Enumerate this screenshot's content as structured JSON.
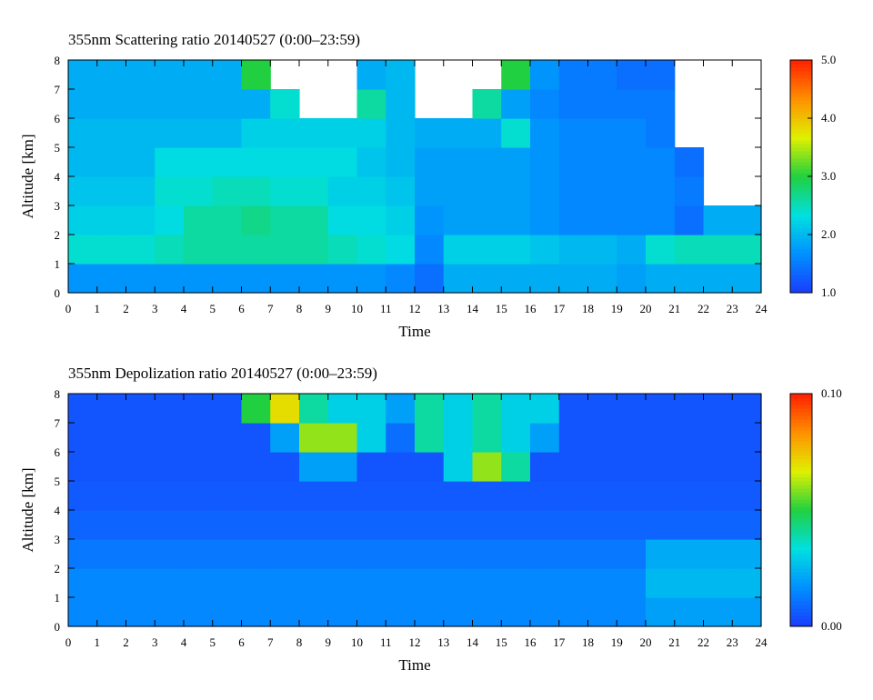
{
  "chart_data": [
    {
      "type": "heatmap",
      "title": "355nm Scattering ratio  20140527 (0:00–23:59)",
      "x_label": "Time",
      "y_label": "Altitude [km]",
      "xlim": [
        0,
        24
      ],
      "ylim": [
        0,
        8
      ],
      "xticks": [
        0,
        1,
        2,
        3,
        4,
        5,
        6,
        7,
        8,
        9,
        10,
        11,
        12,
        13,
        14,
        15,
        16,
        17,
        18,
        19,
        20,
        21,
        22,
        23,
        24
      ],
      "yticks": [
        0,
        1,
        2,
        3,
        4,
        5,
        6,
        7,
        8
      ],
      "xbins": [
        0,
        1,
        2,
        3,
        4,
        5,
        6,
        7,
        8,
        9,
        10,
        11,
        12,
        13,
        14,
        15,
        16,
        17,
        18,
        19,
        20,
        21,
        22,
        23,
        24
      ],
      "ybins": [
        0,
        1,
        2,
        3,
        4,
        5,
        6,
        7,
        8
      ],
      "zlim": [
        1,
        5
      ],
      "zticks": [
        {
          "value": 1,
          "label": "1.0"
        },
        {
          "value": 2,
          "label": "2.0"
        },
        {
          "value": 3,
          "label": "3.0"
        },
        {
          "value": 4,
          "label": "4.0"
        },
        {
          "value": 5,
          "label": "5.0"
        }
      ],
      "colormap": [
        "#1a3cff",
        "#0090ff",
        "#00e0e0",
        "#20d040",
        "#e0f000",
        "#ff9000",
        "#ff2000"
      ],
      "values": [
        [
          1.7,
          1.7,
          1.7,
          1.7,
          1.7,
          1.7,
          1.7,
          1.7,
          1.7,
          1.7,
          1.7,
          1.6,
          1.4,
          1.9,
          1.9,
          1.9,
          1.9,
          1.9,
          1.9,
          1.8,
          1.9,
          1.9,
          1.9,
          1.9
        ],
        [
          2.4,
          2.4,
          2.4,
          2.5,
          2.6,
          2.6,
          2.6,
          2.6,
          2.6,
          2.5,
          2.4,
          2.3,
          1.6,
          2.2,
          2.2,
          2.2,
          2.1,
          2.0,
          2.0,
          1.9,
          2.4,
          2.5,
          2.5,
          2.5
        ],
        [
          2.2,
          2.2,
          2.2,
          2.3,
          2.6,
          2.6,
          2.7,
          2.6,
          2.6,
          2.3,
          2.3,
          2.2,
          1.7,
          1.8,
          1.8,
          1.8,
          1.7,
          1.6,
          1.6,
          1.6,
          1.6,
          1.4,
          1.9,
          1.9
        ],
        [
          2.1,
          2.1,
          2.1,
          2.4,
          2.4,
          2.5,
          2.5,
          2.4,
          2.4,
          2.2,
          2.2,
          2.1,
          1.8,
          1.8,
          1.8,
          1.8,
          1.7,
          1.6,
          1.6,
          1.6,
          1.6,
          1.5,
          null,
          null
        ],
        [
          2.0,
          2.0,
          2.0,
          2.3,
          2.3,
          2.3,
          2.3,
          2.3,
          2.3,
          2.3,
          2.1,
          2.0,
          1.8,
          1.8,
          1.8,
          1.8,
          1.7,
          1.6,
          1.6,
          1.6,
          1.6,
          1.4,
          null,
          null
        ],
        [
          2.0,
          2.0,
          2.0,
          2.0,
          2.0,
          2.0,
          2.2,
          2.2,
          2.2,
          2.2,
          2.2,
          2.0,
          1.9,
          1.9,
          1.9,
          2.4,
          1.7,
          1.6,
          1.6,
          1.6,
          1.5,
          null,
          null,
          null
        ],
        [
          1.9,
          1.9,
          1.9,
          1.9,
          1.9,
          1.9,
          1.9,
          2.4,
          null,
          null,
          2.6,
          2.0,
          null,
          null,
          2.6,
          1.8,
          1.6,
          1.5,
          1.5,
          1.5,
          1.5,
          null,
          null,
          null
        ],
        [
          1.9,
          1.9,
          1.9,
          1.9,
          1.9,
          1.9,
          3.0,
          null,
          null,
          null,
          1.9,
          2.0,
          null,
          null,
          null,
          3.0,
          1.7,
          1.5,
          1.5,
          1.4,
          1.4,
          null,
          null,
          null
        ]
      ]
    },
    {
      "type": "heatmap",
      "title": "355nm Depolization ratio  20140527 (0:00–23:59)",
      "x_label": "Time",
      "y_label": "Altitude [km]",
      "xlim": [
        0,
        24
      ],
      "ylim": [
        0,
        8
      ],
      "xticks": [
        0,
        1,
        2,
        3,
        4,
        5,
        6,
        7,
        8,
        9,
        10,
        11,
        12,
        13,
        14,
        15,
        16,
        17,
        18,
        19,
        20,
        21,
        22,
        23,
        24
      ],
      "yticks": [
        0,
        1,
        2,
        3,
        4,
        5,
        6,
        7,
        8
      ],
      "xbins": [
        0,
        1,
        2,
        3,
        4,
        5,
        6,
        7,
        8,
        9,
        10,
        11,
        12,
        13,
        14,
        15,
        16,
        17,
        18,
        19,
        20,
        21,
        22,
        23,
        24
      ],
      "ybins": [
        0,
        1,
        2,
        3,
        4,
        5,
        6,
        7,
        8
      ],
      "zlim": [
        0,
        0.1
      ],
      "zticks": [
        {
          "value": 0,
          "label": "0.00"
        },
        {
          "value": 0.1,
          "label": "0.10"
        }
      ],
      "colormap": [
        "#1a3cff",
        "#0090ff",
        "#00e0e0",
        "#20d040",
        "#e0f000",
        "#ff9000",
        "#ff2000"
      ],
      "values": [
        [
          0.015,
          0.015,
          0.015,
          0.015,
          0.015,
          0.015,
          0.015,
          0.015,
          0.015,
          0.015,
          0.015,
          0.015,
          0.015,
          0.015,
          0.015,
          0.015,
          0.015,
          0.015,
          0.015,
          0.015,
          0.02,
          0.02,
          0.02,
          0.02
        ],
        [
          0.015,
          0.015,
          0.015,
          0.015,
          0.015,
          0.015,
          0.015,
          0.015,
          0.015,
          0.015,
          0.015,
          0.015,
          0.015,
          0.015,
          0.015,
          0.015,
          0.015,
          0.015,
          0.015,
          0.015,
          0.025,
          0.025,
          0.025,
          0.025
        ],
        [
          0.012,
          0.012,
          0.012,
          0.012,
          0.012,
          0.012,
          0.012,
          0.012,
          0.012,
          0.012,
          0.012,
          0.012,
          0.012,
          0.012,
          0.012,
          0.012,
          0.012,
          0.012,
          0.012,
          0.012,
          0.022,
          0.022,
          0.022,
          0.022
        ],
        [
          0.008,
          0.008,
          0.008,
          0.008,
          0.008,
          0.008,
          0.008,
          0.008,
          0.008,
          0.008,
          0.008,
          0.008,
          0.008,
          0.008,
          0.008,
          0.008,
          0.008,
          0.008,
          0.008,
          0.008,
          0.008,
          0.008,
          0.008,
          0.008
        ],
        [
          0.006,
          0.006,
          0.006,
          0.006,
          0.006,
          0.006,
          0.006,
          0.006,
          0.006,
          0.006,
          0.006,
          0.006,
          0.006,
          0.006,
          0.006,
          0.006,
          0.006,
          0.006,
          0.006,
          0.006,
          0.006,
          0.006,
          0.006,
          0.006
        ],
        [
          0.005,
          0.005,
          0.005,
          0.005,
          0.005,
          0.005,
          0.005,
          0.005,
          0.02,
          0.02,
          0.005,
          0.005,
          0.005,
          0.03,
          0.06,
          0.04,
          0.005,
          0.005,
          0.005,
          0.005,
          0.005,
          0.005,
          0.005,
          0.005
        ],
        [
          0.005,
          0.005,
          0.005,
          0.005,
          0.005,
          0.005,
          0.005,
          0.02,
          0.06,
          0.06,
          0.03,
          0.01,
          0.04,
          0.03,
          0.04,
          0.03,
          0.02,
          0.005,
          0.005,
          0.005,
          0.005,
          0.005,
          0.005,
          0.005
        ],
        [
          0.005,
          0.005,
          0.005,
          0.005,
          0.005,
          0.005,
          0.05,
          0.07,
          0.04,
          0.03,
          0.03,
          0.02,
          0.04,
          0.03,
          0.04,
          0.03,
          0.03,
          0.005,
          0.005,
          0.005,
          0.005,
          0.005,
          0.005,
          0.005
        ]
      ]
    }
  ]
}
